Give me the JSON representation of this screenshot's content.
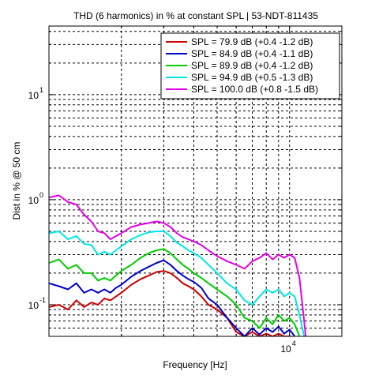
{
  "chart_data": {
    "type": "line",
    "title": "THD (6 harmonics) in % at constant SPL | 53-NDT-811435",
    "xlabel": "Frequency [Hz]",
    "ylabel": "Dist in % @ 50 cm",
    "x_scale": "log",
    "y_scale": "log",
    "xlim": [
      1000,
      16500
    ],
    "ylim": [
      0.05,
      45
    ],
    "grid": true,
    "legend_position": "top-right",
    "y_tick_labels": [
      {
        "base": "10",
        "exp": "1",
        "value": 10
      },
      {
        "base": "10",
        "exp": "0",
        "value": 1
      },
      {
        "base": "10",
        "exp": "-1",
        "value": 0.1
      }
    ],
    "x_tick_labels": [
      {
        "base": "10",
        "exp": "4",
        "value": 10000
      }
    ],
    "x": [
      1000,
      1100,
      1200,
      1300,
      1400,
      1500,
      1600,
      1700,
      1800,
      1900,
      2000,
      2200,
      2400,
      2600,
      2800,
      3000,
      3200,
      3400,
      3600,
      3800,
      4000,
      4300,
      4600,
      5000,
      5500,
      6000,
      6500,
      7000,
      7500,
      8000,
      8500,
      9000,
      9500,
      10000,
      10500,
      11000,
      11500
    ],
    "series": [
      {
        "name": "SPL = 79.9 dB (+0.4 -1.2 dB)",
        "color": "#cc0000",
        "values": [
          0.095,
          0.1,
          0.09,
          0.11,
          0.095,
          0.105,
          0.1,
          0.115,
          0.11,
          0.12,
          0.13,
          0.155,
          0.175,
          0.19,
          0.205,
          0.21,
          0.2,
          0.18,
          0.16,
          0.15,
          0.14,
          0.12,
          0.1,
          0.09,
          0.075,
          0.055,
          0.05,
          0.055,
          0.05,
          0.053,
          0.05,
          0.053,
          0.05,
          0.05,
          0.048,
          null,
          null
        ]
      },
      {
        "name": "SPL = 84.9 dB (+0.4 -1.1 dB)",
        "color": "#0000cc",
        "values": [
          0.16,
          0.15,
          0.14,
          0.16,
          0.13,
          0.14,
          0.13,
          0.14,
          0.13,
          0.145,
          0.155,
          0.185,
          0.21,
          0.23,
          0.25,
          0.265,
          0.24,
          0.21,
          0.19,
          0.175,
          0.165,
          0.145,
          0.115,
          0.1,
          0.075,
          0.06,
          0.05,
          0.06,
          0.052,
          0.06,
          0.055,
          0.062,
          0.053,
          0.058,
          0.05,
          null,
          null
        ]
      },
      {
        "name": "SPL = 89.9 dB (+0.4 -1.2 dB)",
        "color": "#00cc00",
        "values": [
          0.25,
          0.27,
          0.22,
          0.24,
          0.2,
          0.2,
          0.17,
          0.18,
          0.17,
          0.19,
          0.21,
          0.24,
          0.28,
          0.31,
          0.33,
          0.34,
          0.31,
          0.27,
          0.24,
          0.22,
          0.2,
          0.18,
          0.16,
          0.14,
          0.12,
          0.1,
          0.075,
          0.07,
          0.06,
          0.075,
          0.065,
          0.08,
          0.07,
          0.075,
          0.065,
          0.05,
          null
        ]
      },
      {
        "name": "SPL = 94.9 dB (+0.5 -1.3 dB)",
        "color": "#00e6e6",
        "values": [
          0.48,
          0.5,
          0.42,
          0.45,
          0.38,
          0.37,
          0.3,
          0.32,
          0.3,
          0.33,
          0.36,
          0.42,
          0.46,
          0.49,
          0.5,
          0.5,
          0.45,
          0.39,
          0.36,
          0.33,
          0.31,
          0.28,
          0.24,
          0.2,
          0.16,
          0.14,
          0.11,
          0.1,
          0.12,
          0.14,
          0.13,
          0.14,
          0.12,
          0.13,
          0.12,
          0.08,
          0.05
        ]
      },
      {
        "name": "SPL = 100.0 dB (+0.8 -1.5 dB)",
        "color": "#e600e6",
        "values": [
          1.05,
          1.1,
          0.95,
          0.9,
          0.72,
          0.62,
          0.5,
          0.48,
          0.42,
          0.45,
          0.48,
          0.55,
          0.58,
          0.6,
          0.62,
          0.6,
          0.55,
          0.48,
          0.44,
          0.42,
          0.4,
          0.37,
          0.33,
          0.29,
          0.26,
          0.24,
          0.22,
          0.26,
          0.28,
          0.31,
          0.27,
          0.3,
          0.28,
          0.3,
          0.28,
          0.18,
          0.07
        ]
      }
    ]
  }
}
